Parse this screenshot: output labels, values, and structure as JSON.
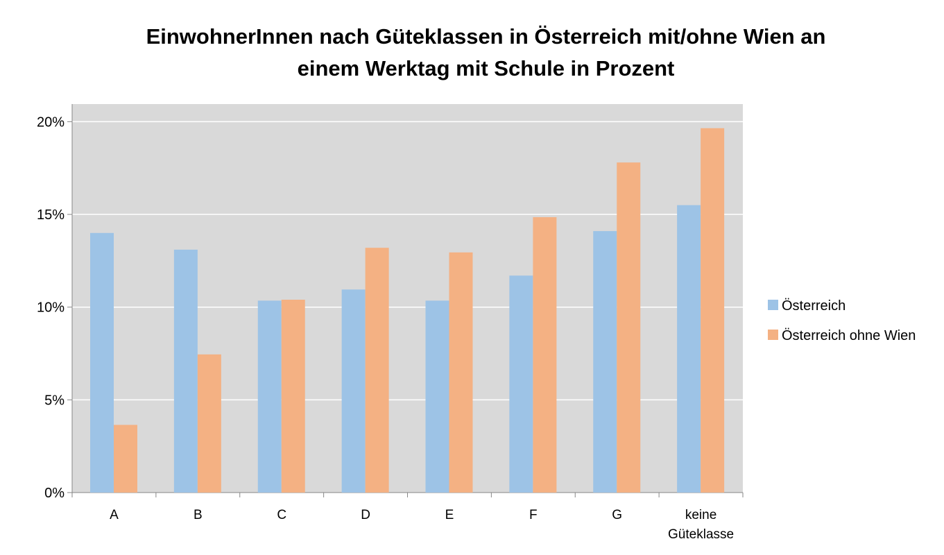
{
  "chart_data": {
    "type": "bar",
    "title_lines": [
      "EinwohnerInnen nach Güteklassen  in Österreich mit/ohne Wien an",
      "einem Werktag mit Schule in Prozent"
    ],
    "categories": [
      "A",
      "B",
      "C",
      "D",
      "E",
      "F",
      "G",
      "keine Güteklasse"
    ],
    "category_lines": [
      [
        "A"
      ],
      [
        "B"
      ],
      [
        "C"
      ],
      [
        "D"
      ],
      [
        "E"
      ],
      [
        "F"
      ],
      [
        "G"
      ],
      [
        "keine",
        "Güteklasse"
      ]
    ],
    "series": [
      {
        "name": "Österreich",
        "color": "#9dc3e6",
        "values": [
          14.0,
          13.1,
          10.35,
          10.95,
          10.35,
          11.7,
          14.1,
          15.5
        ]
      },
      {
        "name": "Österreich ohne Wien",
        "color": "#f4b183",
        "values": [
          3.65,
          7.45,
          10.4,
          13.2,
          12.95,
          14.85,
          17.8,
          19.65
        ]
      }
    ],
    "yticks": [
      "0%",
      "5%",
      "10%",
      "15%",
      "20%"
    ],
    "ytick_values": [
      0,
      5,
      10,
      15,
      20
    ],
    "ylim": [
      0,
      20.95
    ],
    "grid": true,
    "plot_background": "#d9d9d9",
    "legend_position": "right"
  }
}
